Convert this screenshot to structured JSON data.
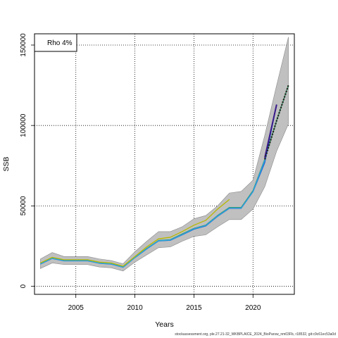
{
  "chart_data": {
    "type": "line",
    "xlabel": "Years",
    "ylabel": "SSB",
    "xlim": [
      2001.5,
      2023.5
    ],
    "ylim": [
      -5000,
      157000
    ],
    "x_ticks": [
      2005,
      2010,
      2015,
      2020
    ],
    "y_ticks": [
      0,
      50000,
      100000,
      150000
    ],
    "grid": "dotted",
    "legend": {
      "position": "top-left",
      "text": "Rho 4%"
    },
    "confidence_band": {
      "color": "#c0c0c0",
      "x": [
        2002,
        2003,
        2004,
        2005,
        2006,
        2007,
        2008,
        2009,
        2010,
        2011,
        2012,
        2013,
        2014,
        2015,
        2016,
        2017,
        2018,
        2019,
        2020,
        2021,
        2022,
        2023
      ],
      "lower": [
        11000,
        14500,
        13500,
        13500,
        13500,
        12000,
        11500,
        9500,
        15000,
        19500,
        24000,
        24500,
        28000,
        31000,
        32000,
        37000,
        41500,
        41500,
        48000,
        62000,
        84000,
        101000
      ],
      "upper": [
        17000,
        21000,
        18500,
        18500,
        18500,
        17000,
        16000,
        14000,
        21500,
        28000,
        34000,
        34000,
        37000,
        42000,
        44000,
        50000,
        58000,
        59000,
        66000,
        94000,
        125000,
        155000
      ]
    },
    "series": [
      {
        "color": "#2e8b57",
        "x": [
          2002,
          2003,
          2004,
          2005,
          2006,
          2007,
          2008,
          2009,
          2010,
          2011,
          2012,
          2013,
          2014,
          2015,
          2016,
          2017,
          2018,
          2019,
          2020,
          2021,
          2022,
          2023
        ],
        "values": [
          14000,
          17500,
          16000,
          16000,
          16000,
          14500,
          14000,
          12000,
          18000,
          23500,
          28500,
          29000,
          32500,
          36000,
          38000,
          44000,
          49000,
          49000,
          59500,
          79000,
          103000,
          125000
        ]
      },
      {
        "color": "#2060d0",
        "x": [
          2002,
          2003,
          2004,
          2005,
          2006,
          2007,
          2008,
          2009,
          2010,
          2011,
          2012,
          2013,
          2014,
          2015,
          2016,
          2017,
          2018,
          2019,
          2020,
          2021,
          2022
        ],
        "values": [
          13800,
          17300,
          15800,
          15800,
          15800,
          14300,
          13800,
          11800,
          17800,
          23200,
          28200,
          28600,
          32000,
          35500,
          37500,
          43500,
          48500,
          48500,
          58800,
          77000,
          113000
        ]
      },
      {
        "color": "#29a8e0",
        "x": [
          2002,
          2003,
          2004,
          2005,
          2006,
          2007,
          2008,
          2009,
          2010,
          2011,
          2012,
          2013,
          2014,
          2015,
          2016,
          2017,
          2018,
          2019,
          2020,
          2021
        ],
        "values": [
          13900,
          17400,
          15900,
          15900,
          15900,
          14400,
          13900,
          11900,
          17900,
          23300,
          28300,
          28800,
          32200,
          35800,
          37800,
          43700,
          48700,
          48700,
          59000,
          78500
        ]
      },
      {
        "color": "#b8b800",
        "x": [
          2002,
          2003,
          2004,
          2005,
          2006,
          2007,
          2008,
          2009,
          2010,
          2011,
          2012,
          2013,
          2014,
          2015,
          2016,
          2017,
          2018
        ],
        "values": [
          14500,
          18000,
          16500,
          16500,
          16500,
          15000,
          14500,
          12500,
          18500,
          24500,
          29500,
          30500,
          34000,
          38000,
          41000,
          48000,
          54000
        ]
      },
      {
        "color": "#3a1a8a",
        "width": 2,
        "x": [
          2021,
          2022
        ],
        "values": [
          80000,
          113000
        ]
      },
      {
        "color": "#222222",
        "width": 2.2,
        "dash": "2,2",
        "x": [
          2021,
          2022,
          2023
        ],
        "values": [
          79000,
          103000,
          125000
        ]
      }
    ]
  },
  "footer": "stockassessment.org, ple.27.21-32_WKBPLAICE_2024_BioParsw_nm03Fb, r18532, git:c9c61ec53a0d"
}
